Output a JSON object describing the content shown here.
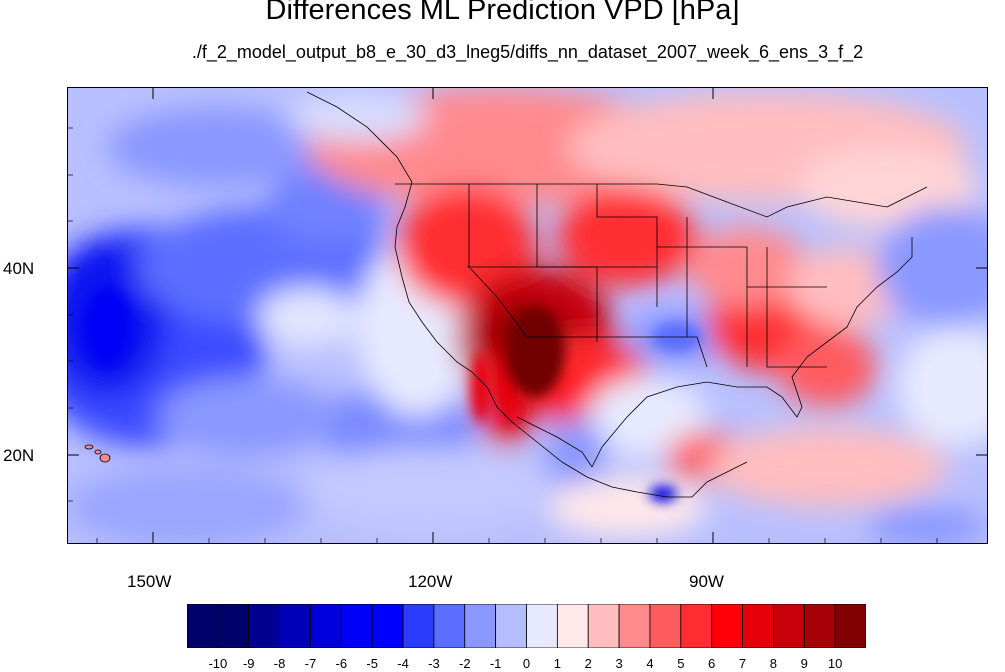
{
  "title": "Differences ML Prediction VPD [hPa]",
  "subtitle": "./f_2_model_output_b8_e_30_d3_lneg5/diffs_nn_dataset_2007_week_6_ens_3_f_2",
  "map": {
    "variable": "VPD difference",
    "units": "hPa",
    "projection": "cylindrical equidistant",
    "lon_range": [
      -160,
      -62
    ],
    "lat_range": [
      10,
      59
    ],
    "lon_ticks": [
      "150W",
      "120W",
      "90W"
    ],
    "lat_ticks": [
      "40N",
      "20N"
    ]
  },
  "colorbar": {
    "labels": [
      "-10",
      "-9",
      "-8",
      "-7",
      "-6",
      "-5",
      "-4",
      "-3",
      "-2",
      "-1",
      "0",
      "1",
      "2",
      "3",
      "4",
      "5",
      "6",
      "7",
      "8",
      "9",
      "10"
    ],
    "colors": [
      "#00006b",
      "#000090",
      "#0000b8",
      "#0000dd",
      "#0000f6",
      "#0000ff",
      "#2b3cff",
      "#5c6eff",
      "#8a98ff",
      "#b6bdff",
      "#e7eaff",
      "#ffe8ea",
      "#ffbdbf",
      "#ff8a8e",
      "#ff5c60",
      "#ff2d32",
      "#ff0008",
      "#e6000a",
      "#c7000a",
      "#a60008",
      "#800004"
    ]
  }
}
